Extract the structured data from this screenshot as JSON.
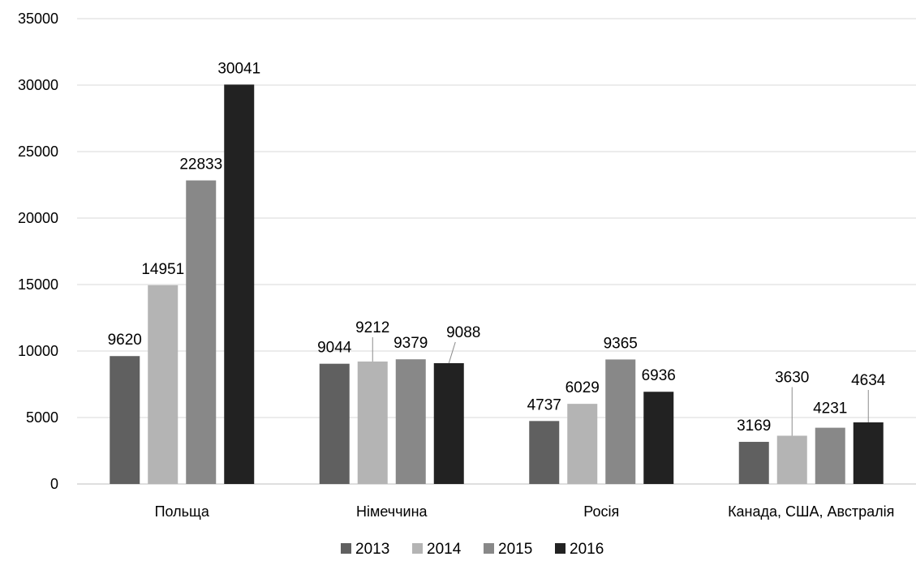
{
  "chart_data": {
    "type": "bar",
    "categories": [
      "Польща",
      "Німеччина",
      "Росія",
      "Канада, США, Австралія"
    ],
    "series": [
      {
        "name": "2013",
        "values": [
          9620,
          9044,
          4737,
          3169
        ],
        "color": "#606060"
      },
      {
        "name": "2014",
        "values": [
          14951,
          9212,
          6029,
          3630
        ],
        "color": "#b4b4b4"
      },
      {
        "name": "2015",
        "values": [
          22833,
          9379,
          9365,
          4231
        ],
        "color": "#888888"
      },
      {
        "name": "2016",
        "values": [
          30041,
          9088,
          6936,
          4634
        ],
        "color": "#222222"
      }
    ],
    "ylim": [
      0,
      35000
    ],
    "yticks": [
      0,
      5000,
      10000,
      15000,
      20000,
      25000,
      30000,
      35000
    ],
    "grid": true,
    "legend": "bottom",
    "data_labels": true
  }
}
